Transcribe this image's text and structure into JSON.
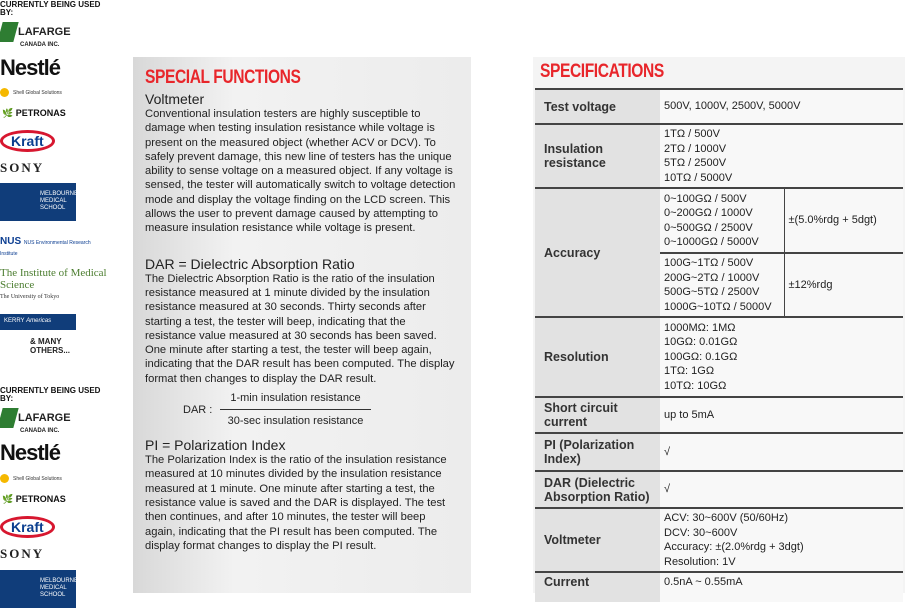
{
  "logos": {
    "used_by_label": "CURRENTLY BEING USED BY:",
    "lafarge": "LAFARGE",
    "lafarge_sub": "CANADA INC.",
    "nestle": "Nestlé",
    "shell": "Shell Global Solutions",
    "petronas": "PETRONAS",
    "kraft": "Kraft",
    "sony": "SONY",
    "melbourne": "MELBOURNE MEDICAL SCHOOL",
    "nus": "NUS",
    "nus_sub": "NUS Environmental Research Institute",
    "ims": "The Institute of Medical Science",
    "ims_sub": "The University of Tokyo",
    "kerry": "KERRY",
    "kerry_sub": "Americas",
    "many": "& MANY OTHERS..."
  },
  "special": {
    "title": "SPECIAL FUNCTIONS",
    "voltmeter_heading": "Voltmeter",
    "voltmeter_text": "Conventional insulation testers are highly susceptible to damage when testing insulation resistance while voltage is present on the measured object (whether ACV or DCV). To safely prevent damage, this new line of testers has the unique ability to sense voltage on a measured object. If any voltage is sensed, the tester will automatically switch to voltage detection mode and display the voltage finding on the LCD screen. This allows the user to prevent damage caused by attempting to measure insulation resistance while voltage is present.",
    "dar_heading": "DAR = Dielectric Absorption Ratio",
    "dar_text": "The Dielectric Absorption Ratio is the ratio of the insulation resistance measured at 1 minute divided by the insulation resistance measured at 30 seconds. Thirty seconds after starting a test, the tester will beep, indicating that the resistance value measured at 30 seconds has been saved. One minute after starting a test, the tester will beep again, indicating that the DAR result has been computed. The display format then changes to display the DAR result.",
    "dar_formula_label": "DAR  :",
    "dar_numerator": "1-min insulation resistance",
    "dar_denominator": "30-sec insulation resistance",
    "pi_heading": "PI = Polarization Index",
    "pi_text": "The Polarization Index is the ratio of the insulation resistance measured at 10 minutes divided by the insulation resistance measured at 1 minute. One minute after starting a test, the resistance value is saved and the DAR is displayed. The test then continues, and after 10 minutes, the tester will beep again, indicating that the PI result has been computed. The display format changes to display the PI result."
  },
  "specs": {
    "title": "SPECIFICATIONS",
    "test_voltage": {
      "label": "Test voltage",
      "value": "500V, 1000V, 2500V, 5000V"
    },
    "insulation": {
      "label": "Insulation resistance",
      "lines": [
        "1TΩ / 500V",
        "2TΩ / 1000V",
        "5TΩ / 2500V",
        "10TΩ / 5000V"
      ]
    },
    "accuracy": {
      "label": "Accuracy",
      "ranges": [
        {
          "lines": [
            "0~100GΩ / 500V",
            "0~200GΩ / 1000V",
            "0~500GΩ / 2500V",
            "0~1000GΩ / 5000V"
          ],
          "value": "±(5.0%rdg + 5dgt)"
        },
        {
          "lines": [
            "100G~1TΩ / 500V",
            "200G~2TΩ / 1000V",
            "500G~5TΩ / 2500V",
            "1000G~10TΩ / 5000V"
          ],
          "value": "±12%rdg"
        }
      ]
    },
    "resolution": {
      "label": "Resolution",
      "lines": [
        "1000MΩ:  1MΩ",
        "10GΩ:  0.01GΩ",
        "100GΩ: 0.1GΩ",
        "1TΩ:  1GΩ",
        "10TΩ:  10GΩ"
      ]
    },
    "short_circuit": {
      "label": "Short circuit current",
      "value": "up to 5mA"
    },
    "pi": {
      "label": "PI (Polarization Index)",
      "value": "√"
    },
    "dar": {
      "label": "DAR (Dielectric Absorption Ratio)",
      "value": "√"
    },
    "voltmeter": {
      "label": "Voltmeter",
      "lines": [
        "ACV: 30~600V (50/60Hz)",
        "DCV: 30~600V",
        "Accuracy: ±(2.0%rdg + 3dgt)",
        "Resolution: 1V"
      ]
    },
    "current": {
      "label": "Current",
      "value": "0.5nA ~ 0.55mA"
    }
  }
}
